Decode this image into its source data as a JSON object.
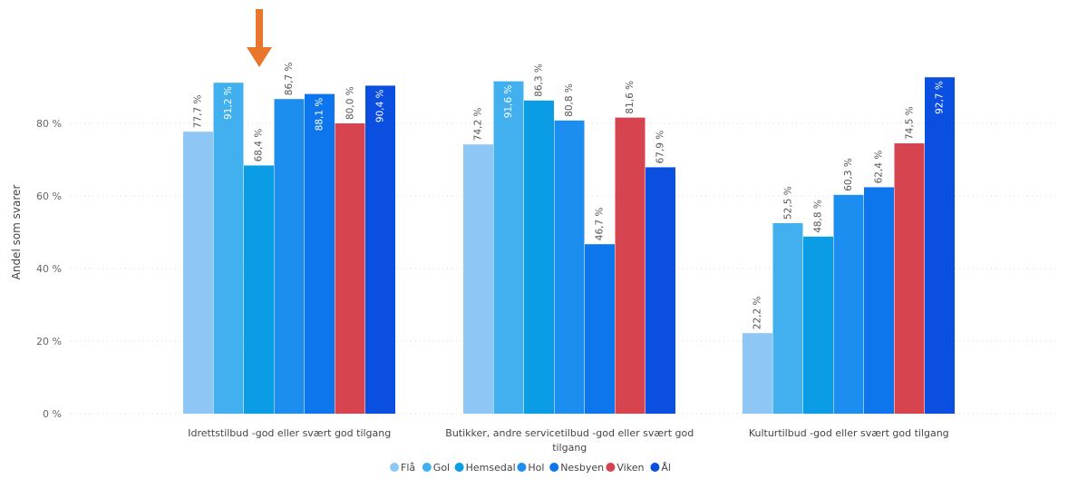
{
  "chart_data": {
    "type": "bar",
    "title": "",
    "xlabel": "",
    "ylabel": "Andel som svarer",
    "ylim": [
      0,
      100
    ],
    "yticks": [
      0,
      20,
      40,
      60,
      80
    ],
    "ytick_labels": [
      "0 %",
      "20 %",
      "40 %",
      "60 %",
      "80 %"
    ],
    "grid": true,
    "legend_position": "bottom-center",
    "categories": [
      [
        "Idrettstilbud -god eller svært god tilgang"
      ],
      [
        "Butikker, andre servicetilbud -god eller svært god",
        "tilgang"
      ],
      [
        "Kulturtilbud -god eller svært god tilgang"
      ]
    ],
    "series": [
      {
        "name": "Flå",
        "color": "#8ec6f5",
        "values": [
          77.7,
          74.2,
          22.2
        ],
        "labels": [
          "77,7 %",
          "74,2 %",
          "22,2 %"
        ]
      },
      {
        "name": "Gol",
        "color": "#42b0ef",
        "values": [
          91.2,
          91.6,
          52.5
        ],
        "labels": [
          "91,2 %",
          "91,6 %",
          "52,5 %"
        ]
      },
      {
        "name": "Hemsedal",
        "color": "#0b9ce6",
        "values": [
          68.4,
          86.3,
          48.8
        ],
        "labels": [
          "68,4 %",
          "86,3 %",
          "48,8 %"
        ]
      },
      {
        "name": "Hol",
        "color": "#1c8ef0",
        "values": [
          86.7,
          80.8,
          60.3
        ],
        "labels": [
          "86,7 %",
          "80,8 %",
          "60,3 %"
        ]
      },
      {
        "name": "Nesbyen",
        "color": "#0d76ec",
        "values": [
          88.1,
          46.7,
          62.4
        ],
        "labels": [
          "88,1 %",
          "46,7 %",
          "62,4 %"
        ]
      },
      {
        "name": "Viken",
        "color": "#d5444f",
        "values": [
          80.0,
          81.6,
          74.5
        ],
        "labels": [
          "80,0 %",
          "81,6 %",
          "74,5 %"
        ]
      },
      {
        "name": "Ål",
        "color": "#0a4fe0",
        "values": [
          90.4,
          67.9,
          92.7
        ],
        "labels": [
          "90,4 %",
          "67,9 %",
          "92,7 %"
        ]
      }
    ]
  },
  "annotation": {
    "type": "arrow",
    "color": "#e8762d",
    "icon": "arrow-down-icon"
  }
}
